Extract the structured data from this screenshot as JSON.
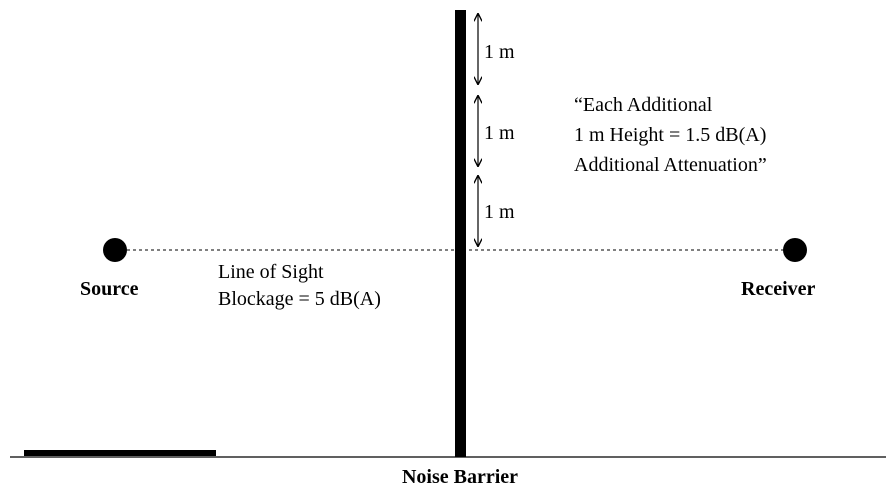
{
  "labels": {
    "source": "Source",
    "receiver": "Receiver",
    "noise_barrier": "Noise Barrier",
    "line_of_sight": [
      "Line of Sight",
      "Blockage = 5 dB(A)"
    ],
    "height_note": [
      "“Each Additional",
      "1 m Height = 1.5 dB(A)",
      "Additional Attenuation”"
    ],
    "segments": [
      "1 m",
      "1 m",
      "1 m"
    ]
  },
  "colors": {
    "ink": "#000000",
    "background": "#ffffff"
  }
}
